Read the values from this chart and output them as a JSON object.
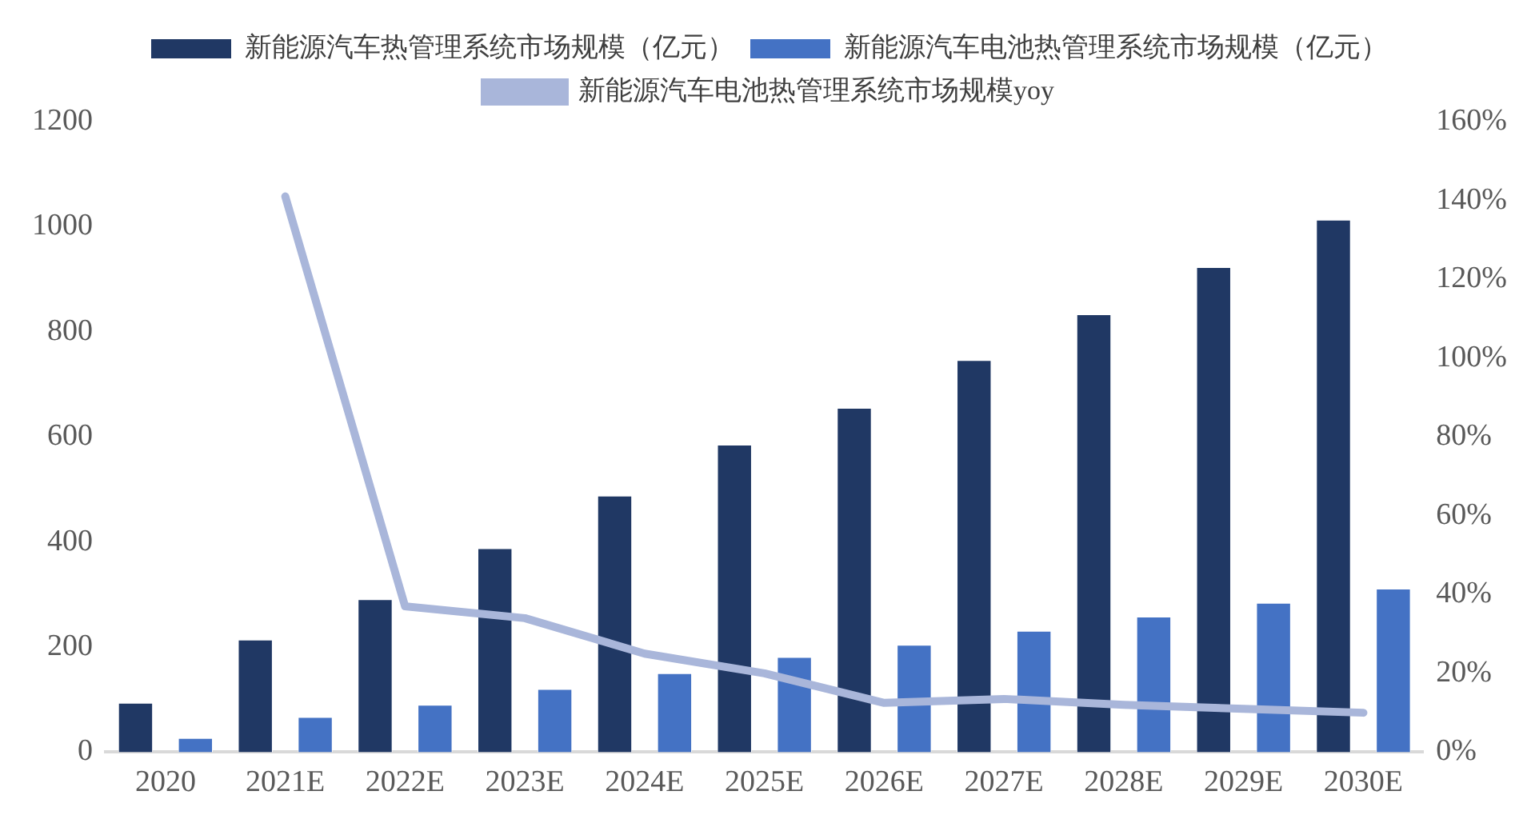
{
  "chart_data": {
    "type": "bar",
    "categories": [
      "2020",
      "2021E",
      "2022E",
      "2023E",
      "2024E",
      "2025E",
      "2026E",
      "2027E",
      "2028E",
      "2029E",
      "2030E"
    ],
    "series": [
      {
        "name": "新能源汽车热管理系统市场规模（亿元）",
        "color": "#203864",
        "values": [
          94,
          214,
          291,
          388,
          488,
          585,
          655,
          746,
          833,
          923,
          1013
        ]
      },
      {
        "name": "新能源汽车电池热管理系统市场规模（亿元）",
        "color": "#4472c4",
        "values": [
          27,
          67,
          90,
          120,
          150,
          181,
          204,
          231,
          258,
          284,
          311
        ]
      },
      {
        "name": "新能源汽车电池热管理系统市场规模yoy",
        "type": "line",
        "axis": "y2",
        "color": "#a9b6da",
        "values": [
          null,
          141,
          37,
          34,
          25,
          20,
          12.5,
          13.5,
          12,
          11,
          10
        ]
      }
    ],
    "ylim": [
      0,
      1200
    ],
    "yticks": [
      0,
      200,
      400,
      600,
      800,
      1000,
      1200
    ],
    "y2lim": [
      0,
      160
    ],
    "y2ticks": [
      {
        "value": 0,
        "label": "0%"
      },
      {
        "value": 20,
        "label": "20%"
      },
      {
        "value": 40,
        "label": "40%"
      },
      {
        "value": 60,
        "label": "60%"
      },
      {
        "value": 80,
        "label": "80%"
      },
      {
        "value": 100,
        "label": "100%"
      },
      {
        "value": 120,
        "label": "120%"
      },
      {
        "value": 140,
        "label": "140%"
      },
      {
        "value": 160,
        "label": "160%"
      }
    ],
    "grid": false,
    "legend": "top",
    "marker": "none"
  }
}
